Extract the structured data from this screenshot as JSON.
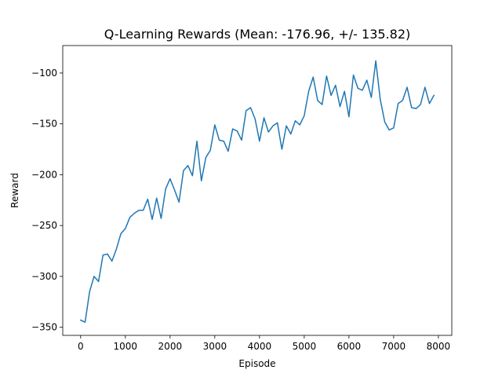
{
  "chart_data": {
    "type": "line",
    "title": "Q-Learning Rewards (Mean: -176.96, +/- 135.82)",
    "xlabel": "Episode",
    "ylabel": "Reward",
    "xlim": [
      -400,
      8300
    ],
    "ylim": [
      -358,
      -73
    ],
    "xticks": [
      0,
      1000,
      2000,
      3000,
      4000,
      5000,
      6000,
      7000,
      8000
    ],
    "yticks": [
      -350,
      -300,
      -250,
      -200,
      -150,
      -100
    ],
    "grid": false,
    "legend": "none",
    "series": [
      {
        "color": "#1f77b4",
        "x": [
          0,
          100,
          200,
          300,
          400,
          500,
          600,
          700,
          800,
          900,
          1000,
          1100,
          1200,
          1300,
          1400,
          1500,
          1600,
          1700,
          1800,
          1900,
          2000,
          2100,
          2200,
          2300,
          2400,
          2500,
          2600,
          2700,
          2800,
          2900,
          3000,
          3100,
          3200,
          3300,
          3400,
          3500,
          3600,
          3700,
          3800,
          3900,
          4000,
          4100,
          4200,
          4300,
          4400,
          4500,
          4600,
          4700,
          4800,
          4900,
          5000,
          5100,
          5200,
          5300,
          5400,
          5500,
          5600,
          5700,
          5800,
          5900,
          6000,
          6100,
          6200,
          6300,
          6400,
          6500,
          6600,
          6700,
          6800,
          6900,
          7000,
          7100,
          7200,
          7300,
          7400,
          7500,
          7600,
          7700,
          7800,
          7900
        ],
        "y": [
          -343,
          -345,
          -315,
          -300,
          -305,
          -279,
          -278,
          -285,
          -273,
          -258,
          -253,
          -242,
          -238,
          -235,
          -235,
          -224,
          -244,
          -223,
          -243,
          -214,
          -204,
          -215,
          -227,
          -196,
          -191,
          -201,
          -167,
          -206,
          -183,
          -176,
          -151,
          -166,
          -167,
          -177,
          -155,
          -157,
          -166,
          -137,
          -134,
          -145,
          -167,
          -144,
          -158,
          -152,
          -149,
          -175,
          -152,
          -160,
          -147,
          -151,
          -142,
          -118,
          -104,
          -127,
          -131,
          -103,
          -122,
          -112,
          -133,
          -118,
          -143,
          -102,
          -115,
          -117,
          -107,
          -124,
          -88,
          -126,
          -148,
          -156,
          -154,
          -130,
          -127,
          -114,
          -134,
          -135,
          -131,
          -114,
          -130,
          -122
        ]
      }
    ]
  }
}
